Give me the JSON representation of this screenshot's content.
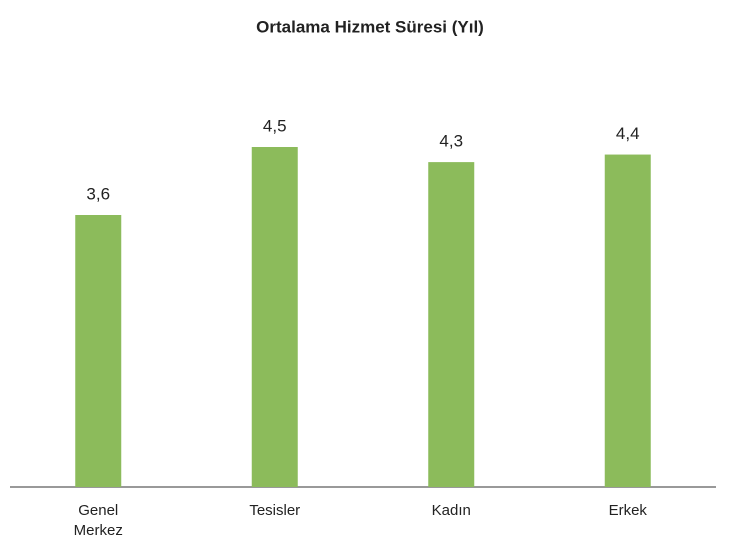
{
  "chart_data": {
    "type": "bar",
    "title": "Ortalama Hizmet Süresi (Yıl)",
    "categories": [
      "Genel Merkez",
      "Tesisler",
      "Kadın",
      "Erkek"
    ],
    "values": [
      3.6,
      4.5,
      4.3,
      4.4
    ],
    "value_labels": [
      "3,6",
      "4,5",
      "4,3",
      "4,4"
    ],
    "color": "#8cbb5b"
  }
}
